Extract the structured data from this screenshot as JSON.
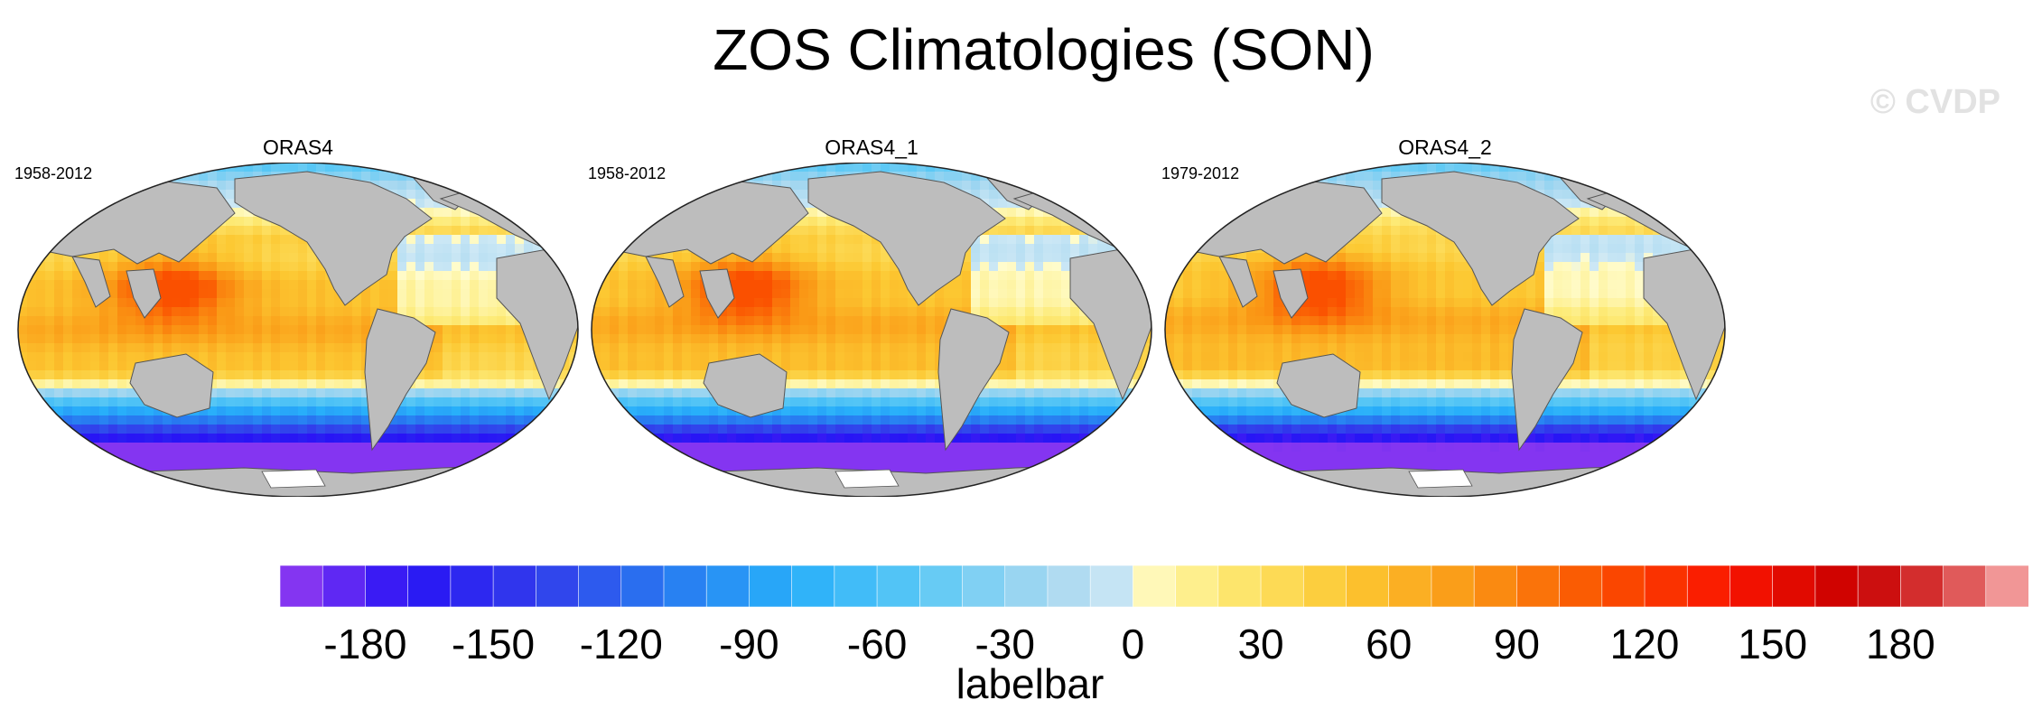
{
  "title": "ZOS Climatologies (SON)",
  "watermark": "© CVDP",
  "panels": [
    {
      "name": "ORAS4",
      "period": "1958-2012"
    },
    {
      "name": "ORAS4_1",
      "period": "1958-2012"
    },
    {
      "name": "ORAS4_2",
      "period": "1979-2012"
    }
  ],
  "colorbar": {
    "title": "labelbar",
    "tick_labels": [
      "-180",
      "-150",
      "-120",
      "-90",
      "-60",
      "-30",
      "0",
      "30",
      "60",
      "90",
      "120",
      "150",
      "180"
    ],
    "tick_values": [
      -180,
      -150,
      -120,
      -90,
      -60,
      -30,
      0,
      30,
      60,
      90,
      120,
      150,
      180
    ],
    "range": [
      -200,
      210
    ],
    "interval": 10
  },
  "colors": {
    "land": "#bdbdbd",
    "coast": "#555555",
    "antarctic": "#ffffff"
  }
}
